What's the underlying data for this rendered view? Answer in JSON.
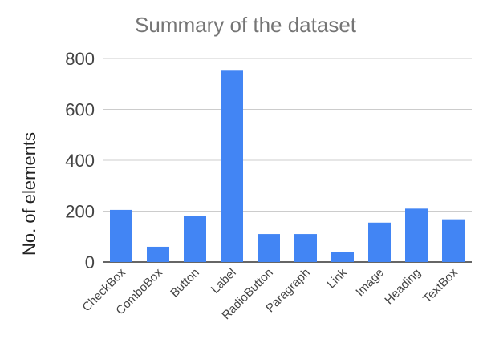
{
  "chart_data": {
    "type": "bar",
    "title": "Summary of  the dataset",
    "xlabel": "",
    "ylabel": "No. of elements",
    "categories": [
      "CheckBox",
      "ComboBox",
      "Button",
      "Label",
      "RadioButton",
      "Paragraph",
      "Link",
      "Image",
      "Heading",
      "TextBox"
    ],
    "values": [
      205,
      60,
      180,
      755,
      110,
      110,
      40,
      155,
      210,
      168
    ],
    "ylim": [
      0,
      800
    ],
    "yticks": [
      0,
      200,
      400,
      600,
      800
    ],
    "grid": true,
    "legend": "none",
    "bar_color": "#4285f4"
  }
}
